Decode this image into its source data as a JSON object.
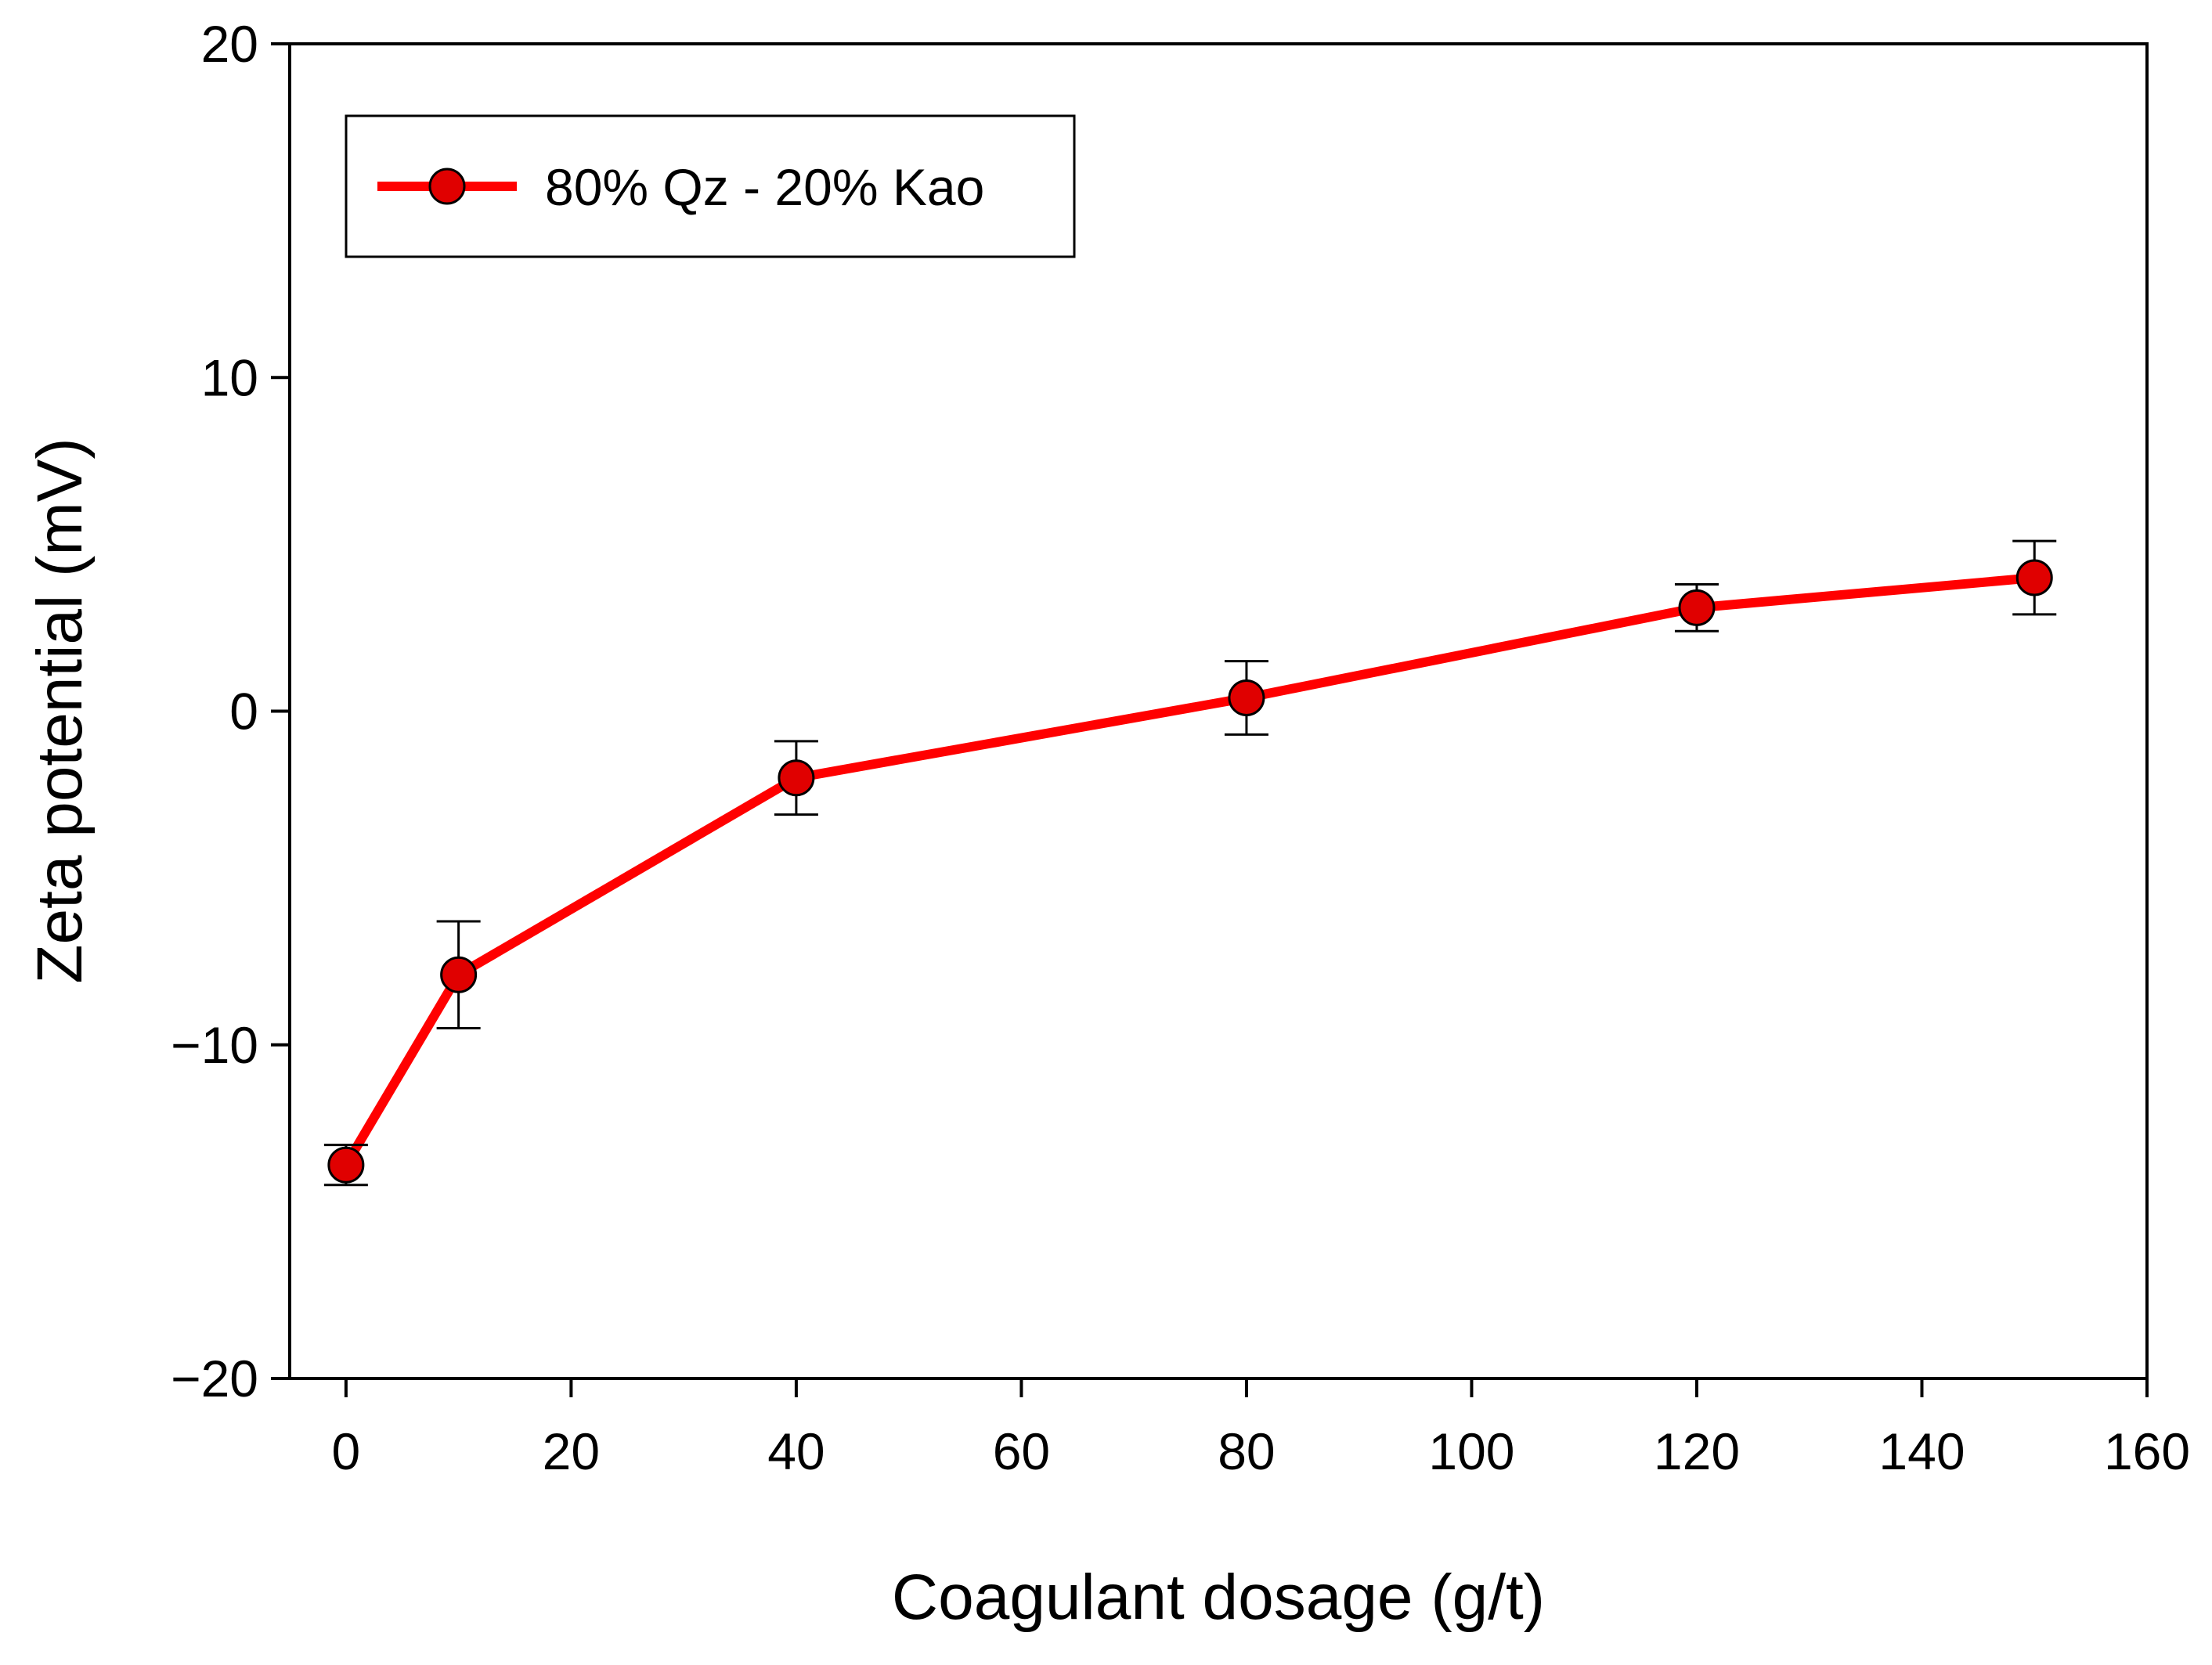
{
  "chart_data": {
    "type": "line",
    "title": "",
    "xlabel": "Coagulant dosage (g/t)",
    "ylabel": "Zeta potential (mV)",
    "xlim": [
      -5,
      160
    ],
    "ylim": [
      -20,
      20
    ],
    "x_ticks": [
      0,
      20,
      40,
      60,
      80,
      100,
      120,
      140,
      160
    ],
    "y_ticks": [
      -20,
      -10,
      0,
      10,
      20
    ],
    "x_tick_labels": [
      "0",
      "20",
      "40",
      "60",
      "80",
      "100",
      "120",
      "140",
      "160"
    ],
    "y_tick_labels": [
      "−20",
      "−10",
      "0",
      "10",
      "20"
    ],
    "grid": false,
    "legend_position": "top-left",
    "series": [
      {
        "name": "80% Qz - 20% Kao",
        "color": "#ff0000",
        "marker_fill": "#e00000",
        "x": [
          0,
          10,
          40,
          80,
          120,
          150
        ],
        "y": [
          -13.6,
          -7.9,
          -2.0,
          0.4,
          3.1,
          4.0
        ],
        "error": [
          0.6,
          1.6,
          1.1,
          1.1,
          0.7,
          1.1
        ]
      }
    ]
  }
}
